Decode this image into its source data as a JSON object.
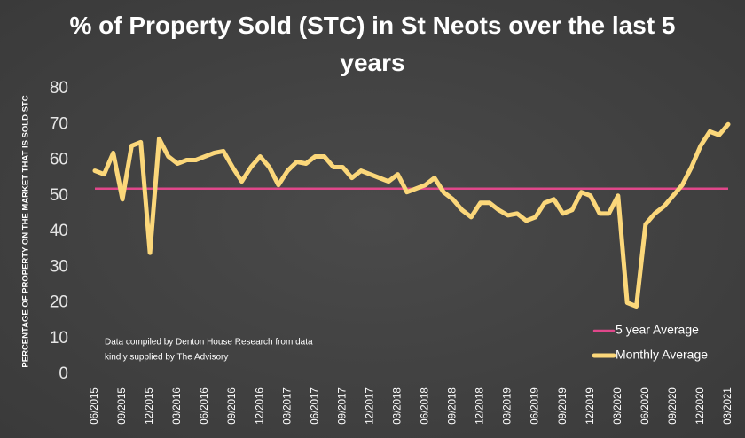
{
  "chart_data": {
    "type": "line",
    "title": "% of Property Sold (STC) in St Neots over the last 5 years",
    "y_label": "PERCENTAGE OF PROPERTY ON THE MARKET THAT IS SOLD STC",
    "annotation": [
      "Data compiled by Denton House Research from data",
      "kindly supplied by The Advisory"
    ],
    "categories": [
      "06/2015",
      null,
      null,
      "09/2015",
      null,
      null,
      "12/2015",
      null,
      null,
      "03/2016",
      null,
      null,
      "06/2016",
      null,
      null,
      "09/2016",
      null,
      null,
      "12/2016",
      null,
      null,
      "03/2017",
      null,
      null,
      "06/2017",
      null,
      null,
      "09/2017",
      null,
      null,
      "12/2017",
      null,
      null,
      "03/2018",
      null,
      null,
      "06/2018",
      null,
      null,
      "09/2018",
      null,
      null,
      "12/2018",
      null,
      null,
      "03/2019",
      null,
      null,
      "06/2019",
      null,
      null,
      "09/2019",
      null,
      null,
      "12/2019",
      null,
      null,
      "03/2020",
      null,
      null,
      "06/2020",
      null,
      null,
      "09/2020",
      null,
      null,
      "12/2020",
      null,
      null,
      "03/2021"
    ],
    "reference_lines": [
      {
        "name": "5 year Average",
        "value": 52,
        "color": "#e0478a"
      }
    ],
    "series": [
      {
        "name": "Monthly Average",
        "color": "#fbd77a",
        "values": [
          57,
          56,
          62,
          49,
          64,
          65,
          34,
          66,
          61,
          59,
          60,
          60,
          61,
          62,
          62.5,
          58,
          54,
          58,
          61,
          58,
          53,
          57,
          59.5,
          59,
          61,
          61,
          58,
          58,
          55,
          57,
          56,
          55,
          54,
          56,
          51,
          52,
          53,
          55,
          51,
          49,
          46,
          44,
          48,
          48,
          46,
          44.5,
          45,
          43,
          44,
          48,
          49,
          45,
          46,
          51,
          50,
          45,
          45,
          50,
          20,
          19,
          42,
          45,
          47,
          50,
          53,
          58,
          64,
          68,
          67,
          70
        ]
      }
    ],
    "ylim": [
      0,
      80
    ],
    "yticks": [
      0,
      10,
      20,
      30,
      40,
      50,
      60,
      70,
      80
    ],
    "legend": "bottom-right"
  }
}
